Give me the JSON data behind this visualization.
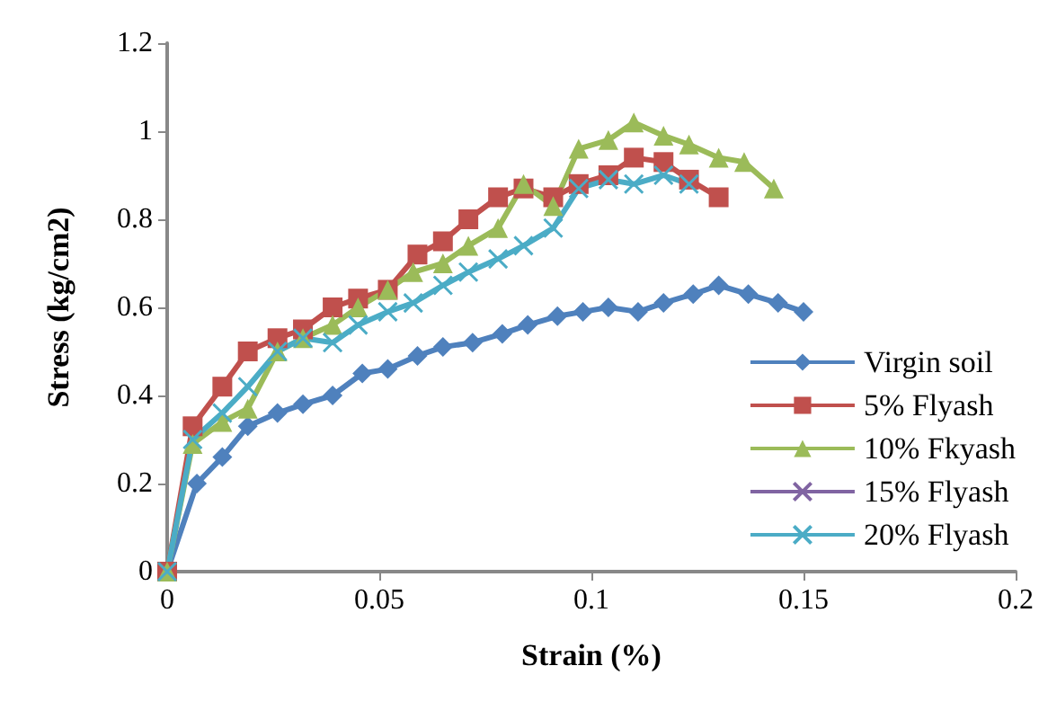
{
  "chart_data": {
    "type": "line",
    "xlabel": "Strain (%)",
    "ylabel": "Stress (kg/cm2)",
    "xlim": [
      0,
      0.2
    ],
    "xticks": [
      0,
      0.05,
      0.1,
      0.15,
      0.2
    ],
    "ylim": [
      0,
      1.2
    ],
    "yticks": [
      0,
      0.2,
      0.4,
      0.6,
      0.8,
      1,
      1.2
    ],
    "grid": false,
    "legend": "right",
    "series": [
      {
        "name": "Virgin soil",
        "color": "#4f81bd",
        "marker": "diamond",
        "x": [
          0,
          0.007,
          0.013,
          0.019,
          0.026,
          0.032,
          0.039,
          0.046,
          0.052,
          0.059,
          0.065,
          0.072,
          0.079,
          0.085,
          0.092,
          0.098,
          0.104,
          0.111,
          0.117,
          0.124,
          0.13,
          0.137,
          0.144,
          0.15
        ],
        "values": [
          0,
          0.2,
          0.26,
          0.33,
          0.36,
          0.38,
          0.4,
          0.45,
          0.46,
          0.49,
          0.51,
          0.52,
          0.54,
          0.56,
          0.58,
          0.59,
          0.6,
          0.59,
          0.61,
          0.63,
          0.65,
          0.63,
          0.61,
          0.59
        ]
      },
      {
        "name": "5% Flyash",
        "color": "#c0504d",
        "marker": "square",
        "x": [
          0,
          0.006,
          0.013,
          0.019,
          0.026,
          0.032,
          0.039,
          0.045,
          0.052,
          0.059,
          0.065,
          0.071,
          0.078,
          0.084,
          0.091,
          0.097,
          0.104,
          0.11,
          0.117,
          0.123,
          0.13
        ],
        "values": [
          0,
          0.33,
          0.42,
          0.5,
          0.53,
          0.55,
          0.6,
          0.62,
          0.64,
          0.72,
          0.75,
          0.8,
          0.85,
          0.87,
          0.85,
          0.88,
          0.9,
          0.94,
          0.93,
          0.89,
          0.85
        ]
      },
      {
        "name": "10% Fkyash",
        "color": "#9bbb59",
        "marker": "triangle",
        "x": [
          0,
          0.006,
          0.013,
          0.019,
          0.026,
          0.032,
          0.039,
          0.045,
          0.052,
          0.058,
          0.065,
          0.071,
          0.078,
          0.084,
          0.091,
          0.097,
          0.104,
          0.11,
          0.117,
          0.123,
          0.13,
          0.136,
          0.143
        ],
        "values": [
          0,
          0.29,
          0.34,
          0.37,
          0.5,
          0.53,
          0.56,
          0.6,
          0.64,
          0.68,
          0.7,
          0.74,
          0.78,
          0.88,
          0.83,
          0.96,
          0.98,
          1.02,
          0.99,
          0.97,
          0.94,
          0.93,
          0.87
        ]
      },
      {
        "name": "15% Flyash",
        "color": "#8064a2",
        "marker": "cross"
      },
      {
        "name": "20% Flyash",
        "color": "#4bacc6",
        "marker": "cross",
        "x": [
          0,
          0.006,
          0.013,
          0.019,
          0.026,
          0.032,
          0.039,
          0.045,
          0.052,
          0.058,
          0.065,
          0.071,
          0.078,
          0.084,
          0.091,
          0.097,
          0.104,
          0.11,
          0.117,
          0.123
        ],
        "values": [
          0,
          0.3,
          0.36,
          0.42,
          0.5,
          0.53,
          0.52,
          0.56,
          0.59,
          0.61,
          0.65,
          0.68,
          0.71,
          0.74,
          0.78,
          0.87,
          0.89,
          0.88,
          0.9,
          0.88
        ]
      }
    ]
  }
}
